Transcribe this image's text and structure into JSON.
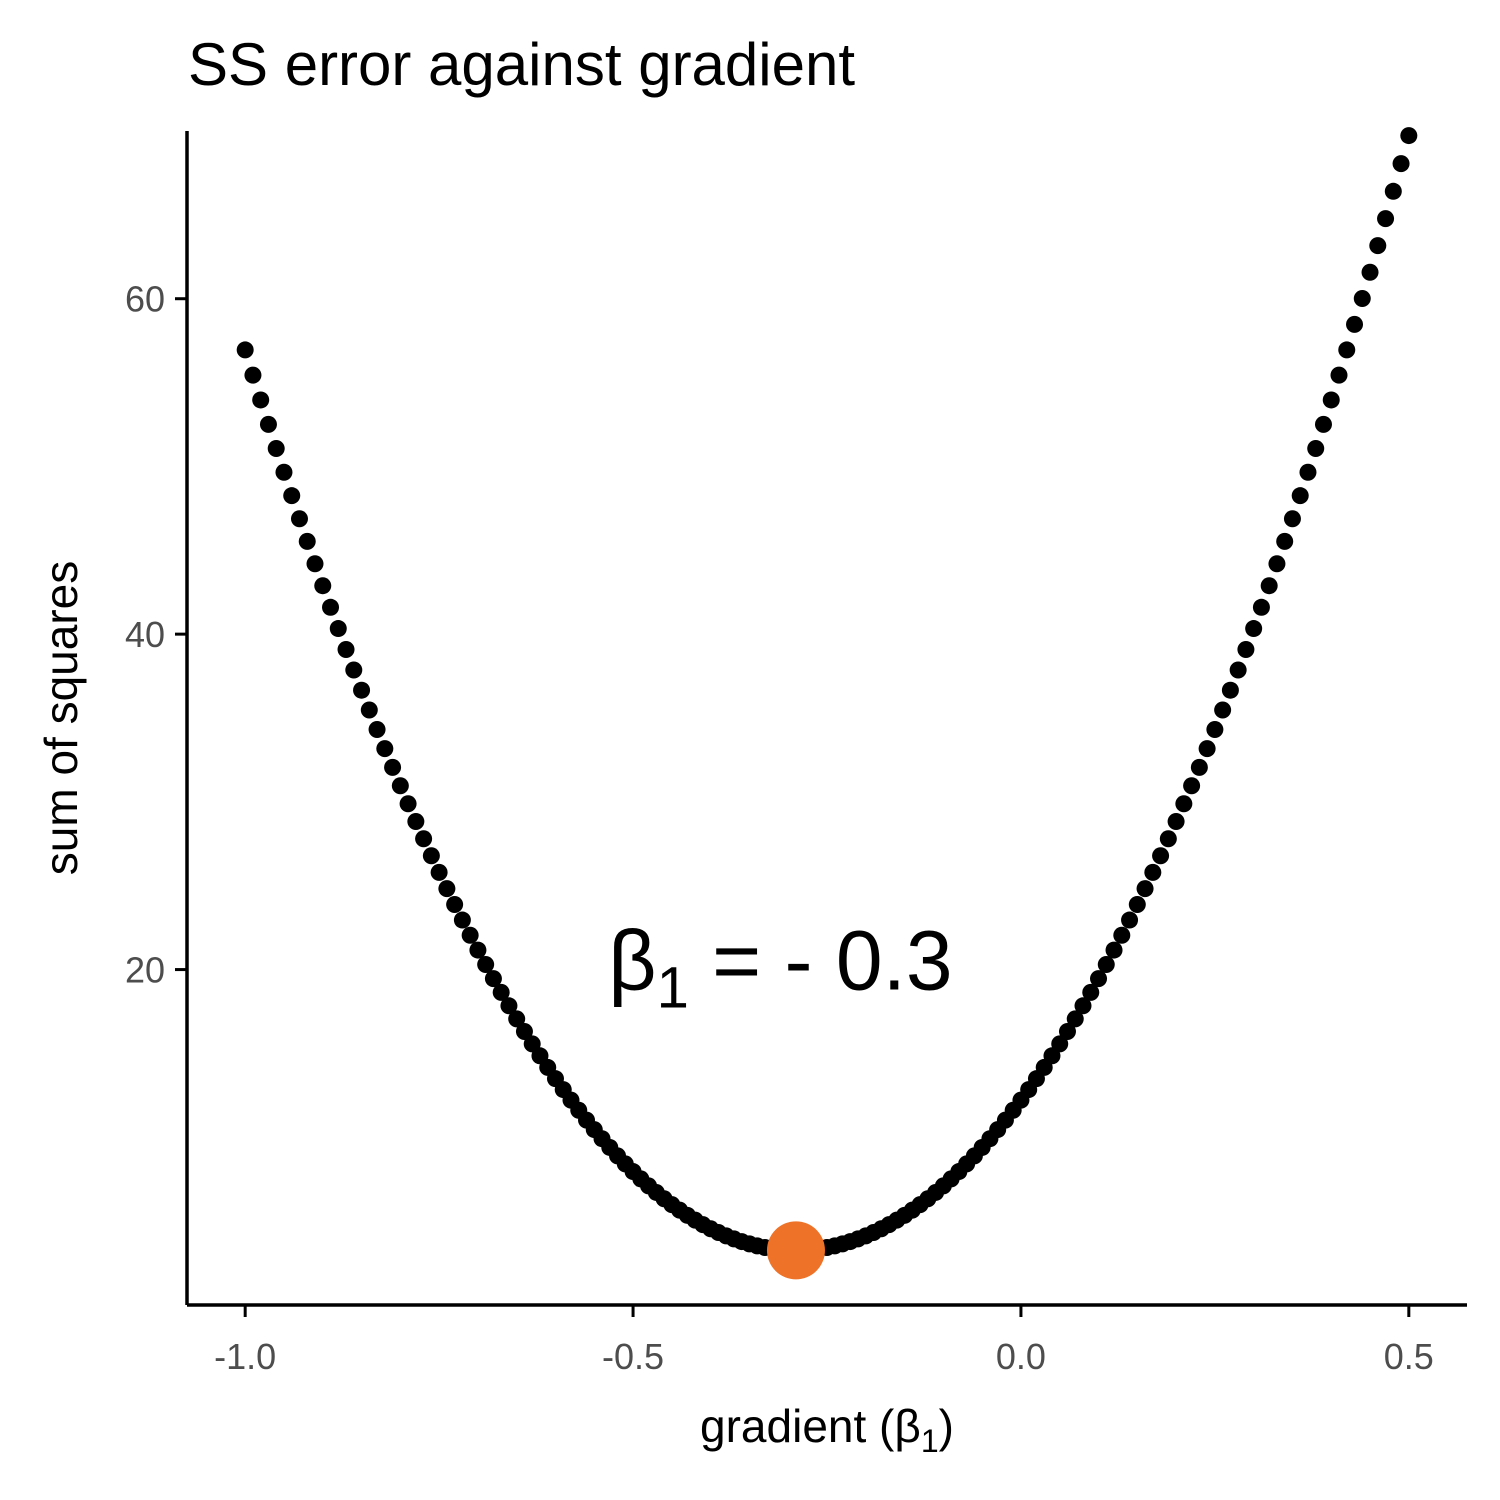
{
  "chart_data": {
    "type": "scatter",
    "title": "SS error against gradient",
    "xlabel": {
      "main": "gradient (",
      "symbol": "β",
      "sub": "1",
      "close": ")"
    },
    "ylabel": "sum of squares",
    "xlim": [
      -1.075,
      0.575
    ],
    "ylim": [
      0.0,
      70.0
    ],
    "x_ticks": [
      -1.0,
      -0.5,
      0.0,
      0.5
    ],
    "x_tick_labels": [
      "-1.0",
      "-0.5",
      "0.0",
      "0.5"
    ],
    "y_ticks": [
      20,
      40,
      60
    ],
    "y_tick_labels": [
      "20",
      "40",
      "60"
    ],
    "series": [
      {
        "x_start": -1.0,
        "x_end": 0.5,
        "x_step": 0.01,
        "curve": {
          "vertex_x": -0.29,
          "vertex_y": 3.26,
          "a": 106.5
        },
        "color": "#000000"
      }
    ],
    "highlight": {
      "x": -0.29,
      "y": 3.26,
      "color": "#EE7227"
    },
    "annotation": {
      "symbol": "β",
      "sub": "1",
      "text": " = - 0.3",
      "x": -0.31,
      "y": 20.0
    }
  }
}
